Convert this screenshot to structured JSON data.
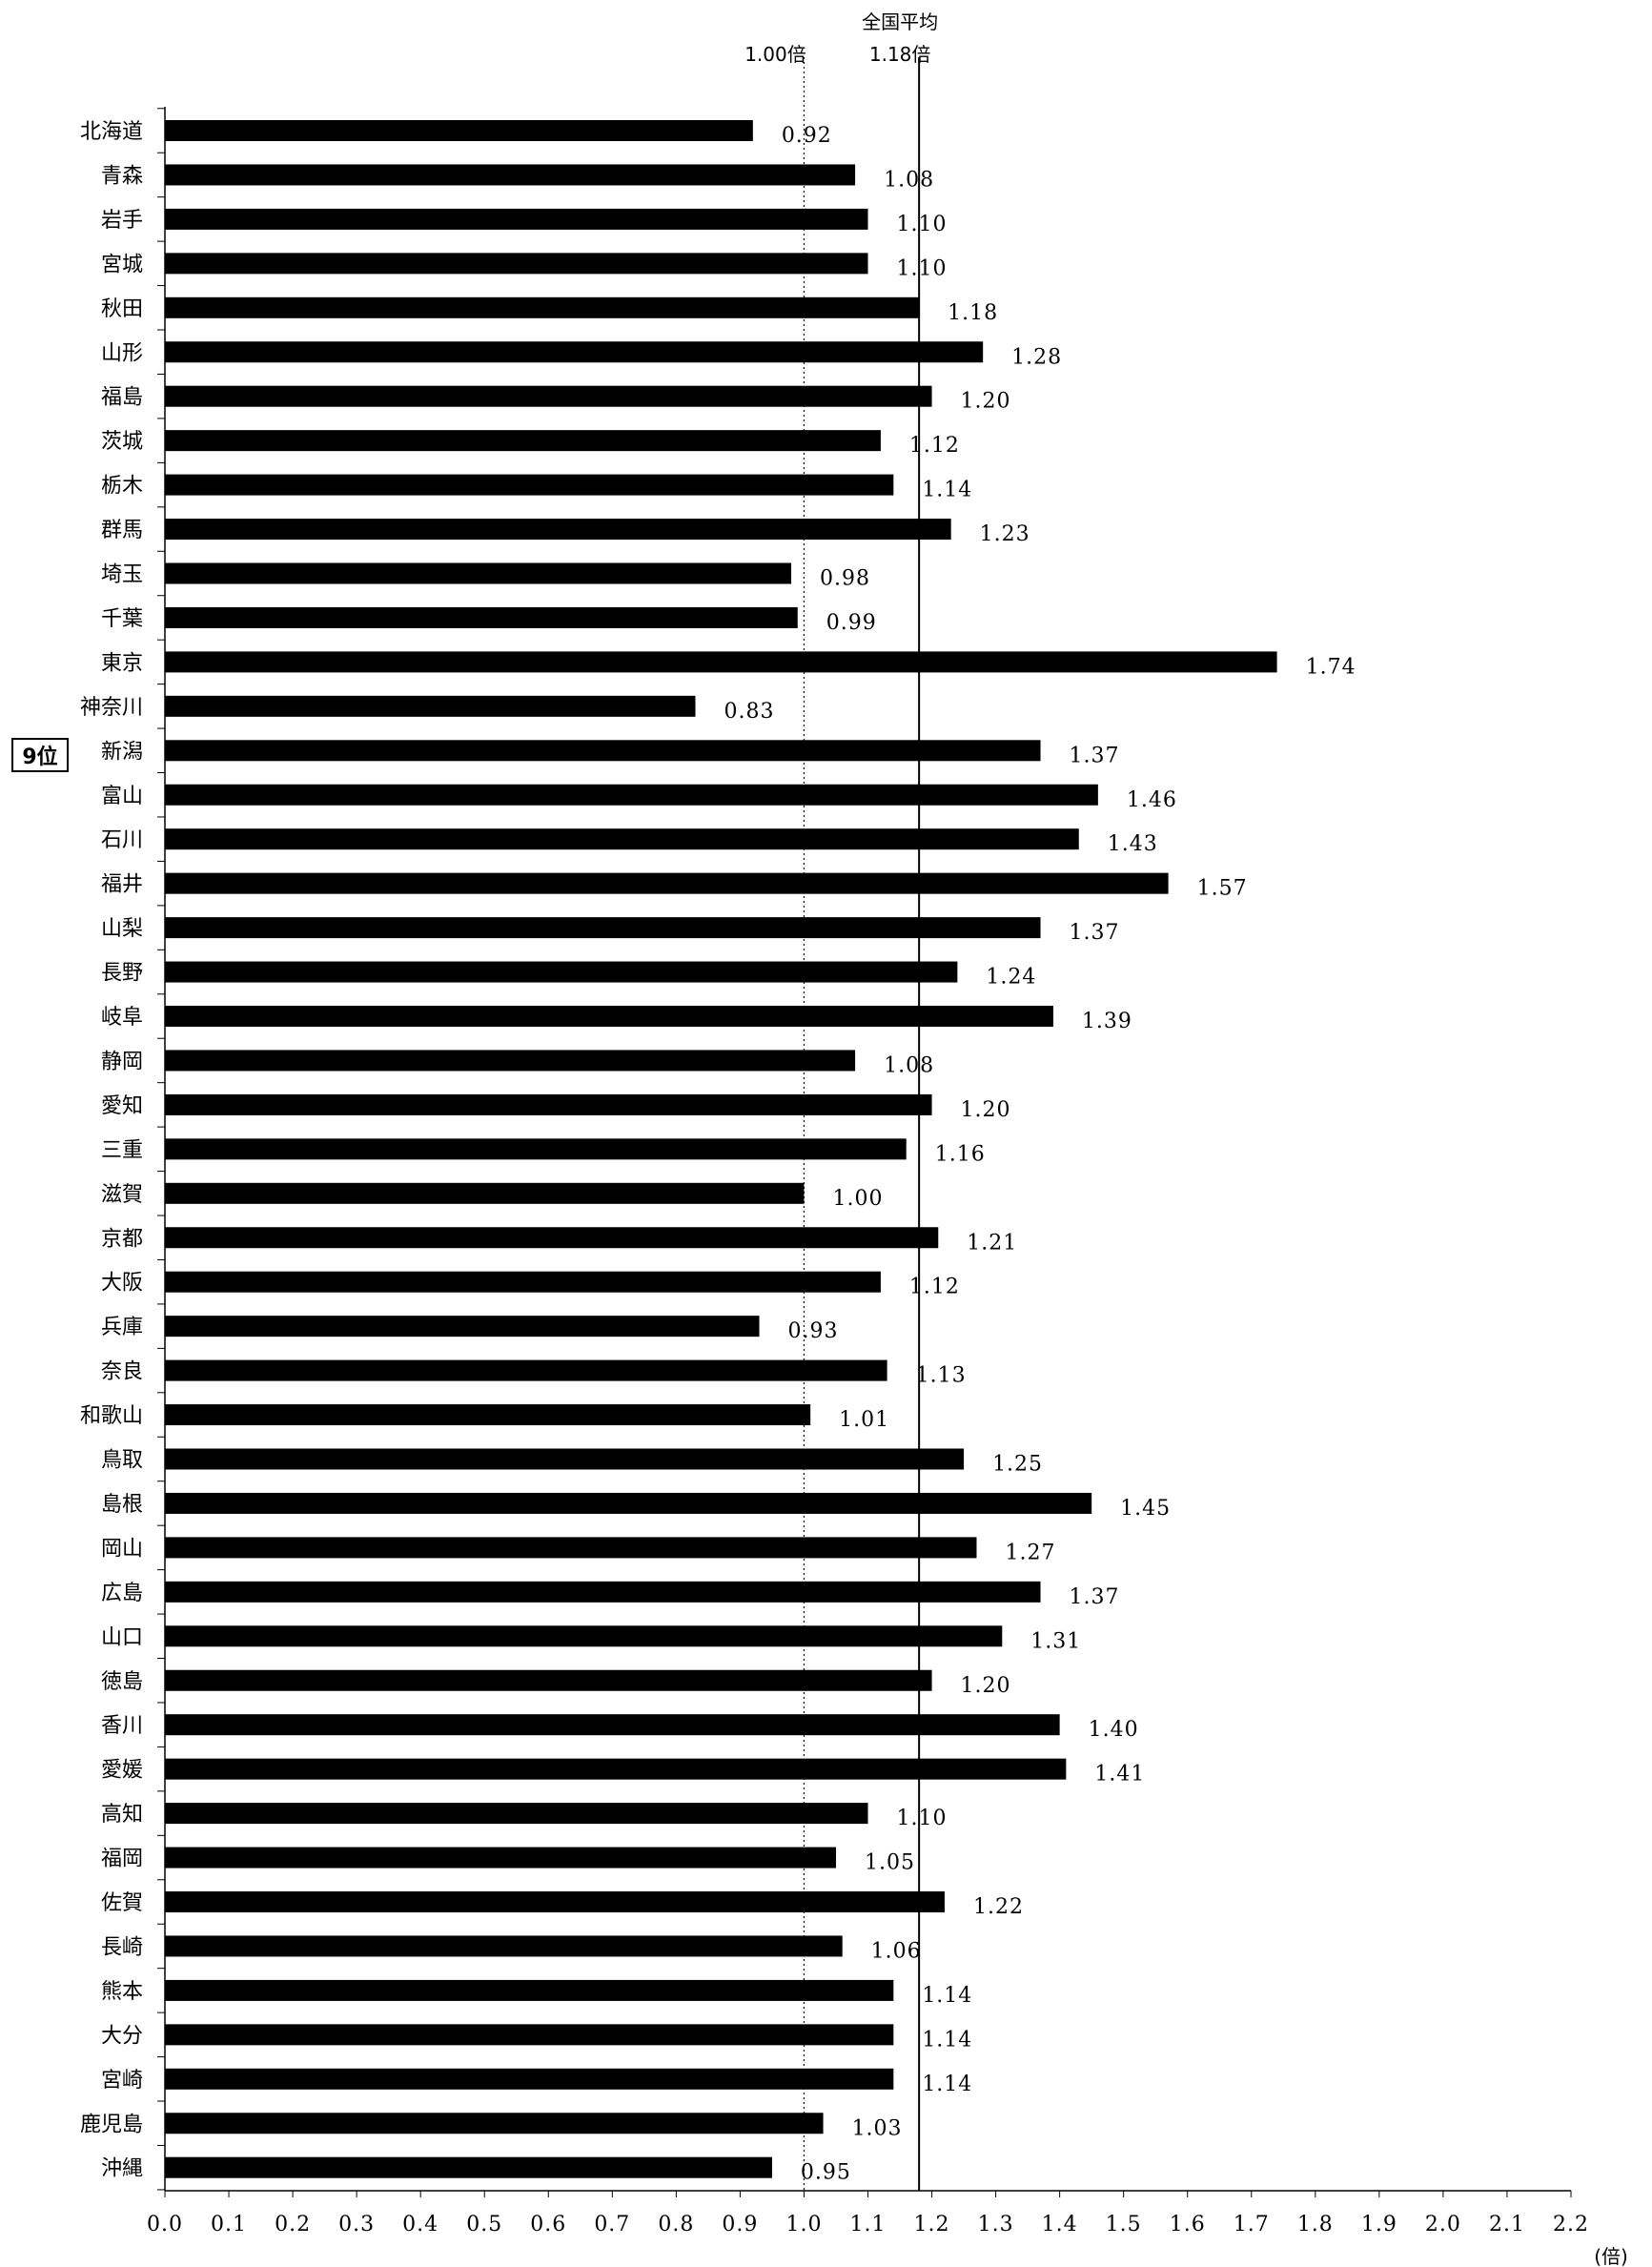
{
  "chart_data": {
    "type": "bar",
    "orientation": "horizontal",
    "categories": [
      "北海道",
      "青森",
      "岩手",
      "宮城",
      "秋田",
      "山形",
      "福島",
      "茨城",
      "栃木",
      "群馬",
      "埼玉",
      "千葉",
      "東京",
      "神奈川",
      "新潟",
      "富山",
      "石川",
      "福井",
      "山梨",
      "長野",
      "岐阜",
      "静岡",
      "愛知",
      "三重",
      "滋賀",
      "京都",
      "大阪",
      "兵庫",
      "奈良",
      "和歌山",
      "鳥取",
      "島根",
      "岡山",
      "広島",
      "山口",
      "徳島",
      "香川",
      "愛媛",
      "高知",
      "福岡",
      "佐賀",
      "長崎",
      "熊本",
      "大分",
      "宮崎",
      "鹿児島",
      "沖縄"
    ],
    "values": [
      0.92,
      1.08,
      1.1,
      1.1,
      1.18,
      1.28,
      1.2,
      1.12,
      1.14,
      1.23,
      0.98,
      0.99,
      1.74,
      0.83,
      1.37,
      1.46,
      1.43,
      1.57,
      1.37,
      1.24,
      1.39,
      1.08,
      1.2,
      1.16,
      1.0,
      1.21,
      1.12,
      0.93,
      1.13,
      1.01,
      1.25,
      1.45,
      1.27,
      1.37,
      1.31,
      1.2,
      1.4,
      1.41,
      1.1,
      1.05,
      1.22,
      1.06,
      1.14,
      1.14,
      1.14,
      1.03,
      0.95
    ],
    "value_labels": [
      "0.92",
      "1.08",
      "1.10",
      "1.10",
      "1.18",
      "1.28",
      "1.20",
      "1.12",
      "1.14",
      "1.23",
      "0.98",
      "0.99",
      "1.74",
      "0.83",
      "1.37",
      "1.46",
      "1.43",
      "1.57",
      "1.37",
      "1.24",
      "1.39",
      "1.08",
      "1.20",
      "1.16",
      "1.00",
      "1.21",
      "1.12",
      "0.93",
      "1.13",
      "1.01",
      "1.25",
      "1.45",
      "1.27",
      "1.37",
      "1.31",
      "1.20",
      "1.40",
      "1.41",
      "1.10",
      "1.05",
      "1.22",
      "1.06",
      "1.14",
      "1.14",
      "1.14",
      "1.03",
      "0.95"
    ],
    "xlim": [
      0.0,
      2.2
    ],
    "x_ticks": [
      "0.0",
      "0.1",
      "0.2",
      "0.3",
      "0.4",
      "0.5",
      "0.6",
      "0.7",
      "0.8",
      "0.9",
      "1.0",
      "1.1",
      "1.2",
      "1.3",
      "1.4",
      "1.5",
      "1.6",
      "1.7",
      "1.8",
      "1.9",
      "2.0",
      "2.1",
      "2.2"
    ],
    "x_unit_label": "(倍)",
    "reference_lines": [
      {
        "value": 1.0,
        "style": "dotted",
        "label": "1.00倍"
      },
      {
        "value": 1.18,
        "style": "solid",
        "label_line1": "全国平均",
        "label_line2": "1.18倍"
      }
    ],
    "highlight": {
      "category": "新潟",
      "label": "9位"
    },
    "bar_color": "#000000",
    "grid": false,
    "legend": "none"
  }
}
